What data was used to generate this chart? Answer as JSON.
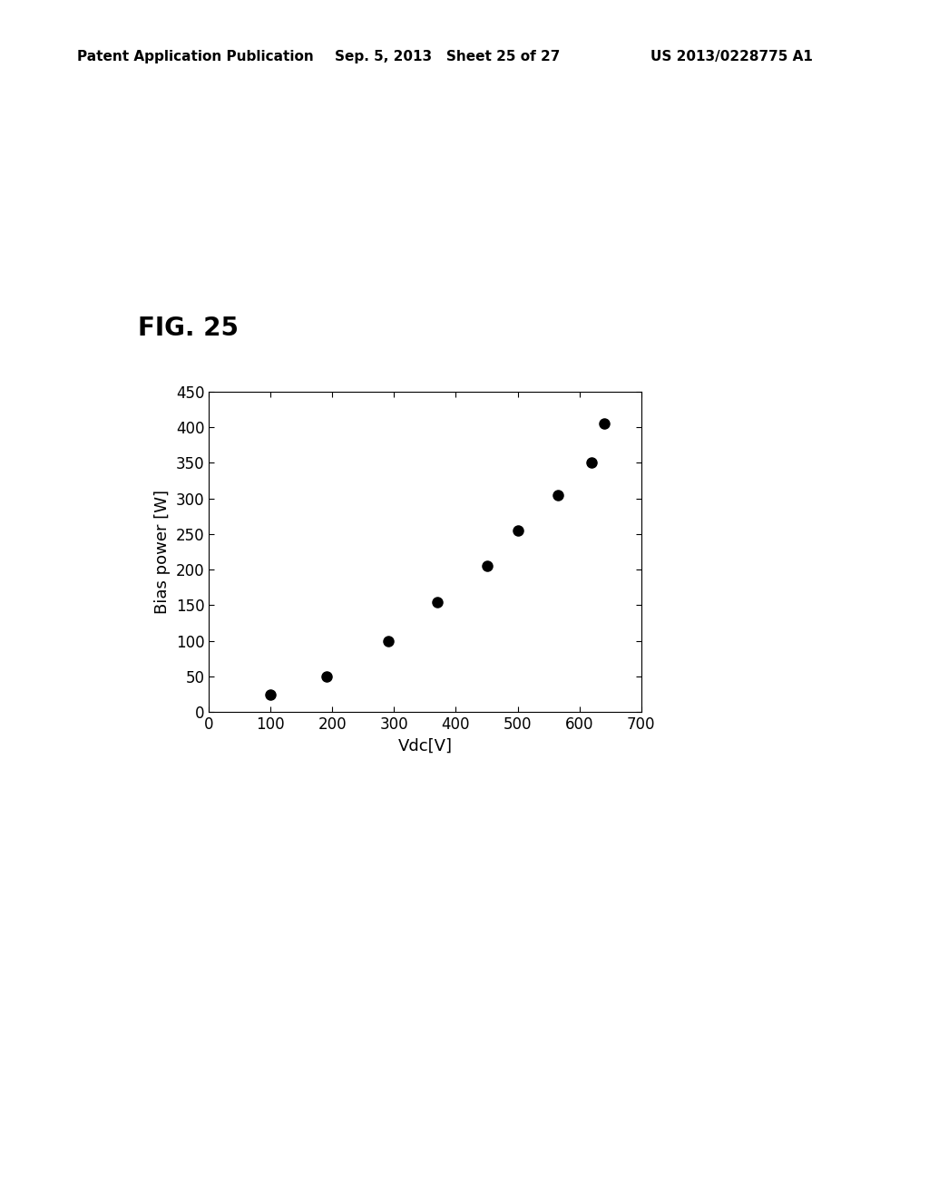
{
  "title": "FIG. 25",
  "xlabel": "Vdc[V]",
  "ylabel": "Bias power [W]",
  "x_data": [
    100,
    190,
    290,
    370,
    450,
    500,
    565,
    620,
    640
  ],
  "y_data": [
    25,
    50,
    100,
    155,
    205,
    255,
    305,
    350,
    405
  ],
  "xlim": [
    0,
    700
  ],
  "ylim": [
    0,
    450
  ],
  "xticks": [
    0,
    100,
    200,
    300,
    400,
    500,
    600,
    700
  ],
  "yticks": [
    0,
    50,
    100,
    150,
    200,
    250,
    300,
    350,
    400,
    450
  ],
  "marker_size": 8,
  "marker_color": "#000000",
  "background_color": "#ffffff",
  "header_left": "Patent Application Publication",
  "header_center": "Sep. 5, 2013   Sheet 25 of 27",
  "header_right": "US 2013/0228775 A1",
  "title_fontsize": 20,
  "axis_label_fontsize": 13,
  "tick_fontsize": 12,
  "header_fontsize": 11
}
